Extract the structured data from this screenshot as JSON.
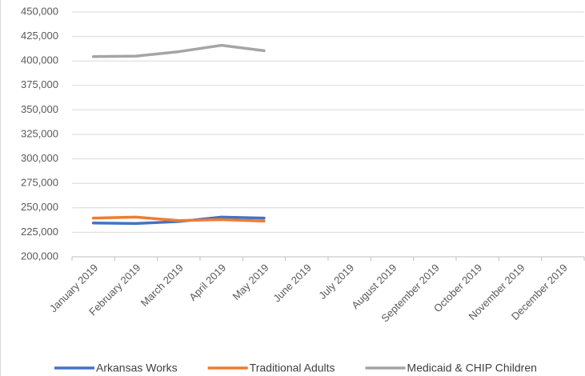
{
  "chart_data": {
    "type": "line",
    "categories": [
      "January 2019",
      "February 2019",
      "March 2019",
      "April 2019",
      "May 2019",
      "June 2019",
      "July 2019",
      "August 2019",
      "September 2019",
      "October 2019",
      "November 2019",
      "December 2019"
    ],
    "series": [
      {
        "name": "Arkansas Works",
        "color": "#4472c4",
        "values": [
          234500,
          234000,
          236000,
          240500,
          239500,
          null,
          null,
          null,
          null,
          null,
          null,
          null
        ]
      },
      {
        "name": "Traditional Adults",
        "color": "#ed7d31",
        "values": [
          239500,
          240500,
          237000,
          238000,
          236500,
          null,
          null,
          null,
          null,
          null,
          null,
          null
        ]
      },
      {
        "name": "Medicaid & CHIP Children",
        "color": "#a5a5a5",
        "values": [
          404500,
          405000,
          409500,
          416000,
          410500,
          null,
          null,
          null,
          null,
          null,
          null,
          null
        ]
      }
    ],
    "ylim": [
      200000,
      450000
    ],
    "yticks": [
      {
        "value": 200000,
        "label": "200,000"
      },
      {
        "value": 225000,
        "label": "225,000"
      },
      {
        "value": 250000,
        "label": "250,000"
      },
      {
        "value": 275000,
        "label": "275,000"
      },
      {
        "value": 300000,
        "label": "300,000"
      },
      {
        "value": 325000,
        "label": "325,000"
      },
      {
        "value": 350000,
        "label": "350,000"
      },
      {
        "value": 375000,
        "label": "375,000"
      },
      {
        "value": 400000,
        "label": "400,000"
      },
      {
        "value": 425000,
        "label": "425,000"
      },
      {
        "value": 450000,
        "label": "450,000"
      }
    ],
    "grid": true,
    "legend": "bottom"
  }
}
